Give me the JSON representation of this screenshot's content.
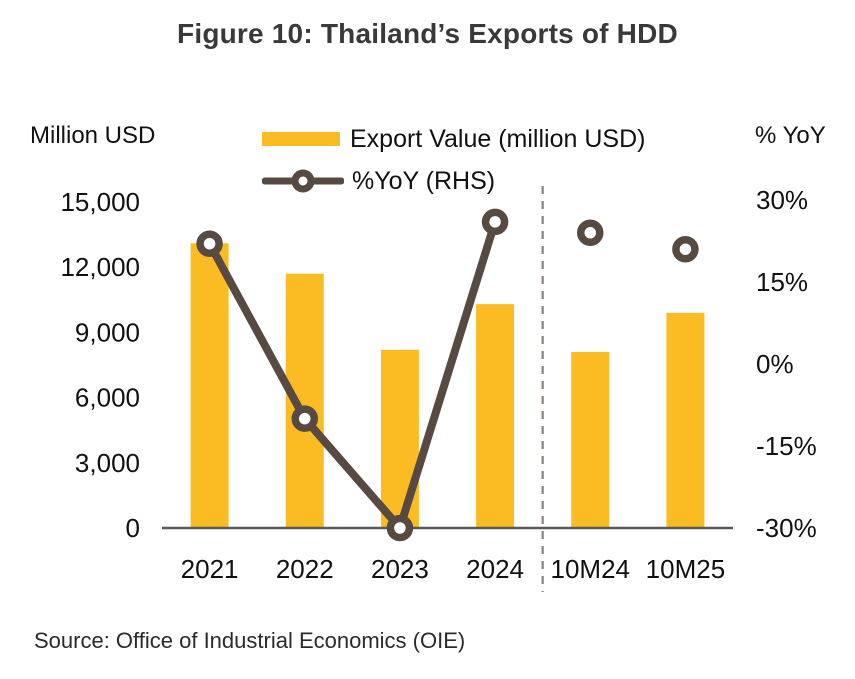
{
  "title": "Figure 10: Thailand’s Exports of HDD",
  "left_axis_unit": "Million USD",
  "right_axis_unit": "% YoY",
  "legend": [
    {
      "swatch": "bar",
      "label": "Export Value (million USD)"
    },
    {
      "swatch": "line-marker",
      "label": "%YoY (RHS)"
    }
  ],
  "source": "Source: Office of Industrial Economics (OIE)",
  "colors": {
    "bar": "#FBBC23",
    "line": "#574A42",
    "marker_fill": "#FFFFFF",
    "axis_line": "#595959",
    "separator": "#8B8178",
    "title_text": "#3B3838",
    "tick_text": "#111111"
  },
  "chart_data": {
    "type": "bar",
    "subtype": "bar-with-line-overlay",
    "categories": [
      "2021",
      "2022",
      "2023",
      "2024",
      "10M24",
      "10M25"
    ],
    "series": [
      {
        "name": "Export Value (million USD)",
        "type": "bar",
        "axis": "left",
        "values": [
          13100,
          11700,
          8200,
          10300,
          8100,
          9900
        ]
      },
      {
        "name": "%YoY (RHS)",
        "type": "line",
        "axis": "right",
        "values": [
          22,
          -10,
          -30,
          26,
          24,
          21
        ],
        "line_connected_through_index": 3,
        "marker": "open-circle"
      }
    ],
    "left_axis": {
      "label": "Million USD",
      "ticks": [
        0,
        3000,
        6000,
        9000,
        12000,
        15000
      ],
      "range": [
        0,
        15000
      ]
    },
    "right_axis": {
      "label": "% YoY",
      "ticks": [
        -30,
        -15,
        0,
        15,
        30
      ],
      "range": [
        -30,
        30
      ],
      "format": "percent"
    },
    "separator_after_category": "2024",
    "grid": false,
    "legend_position": "top",
    "title": "Figure 10: Thailand’s Exports of HDD",
    "source": "Source: Office of Industrial Economics (OIE)"
  }
}
